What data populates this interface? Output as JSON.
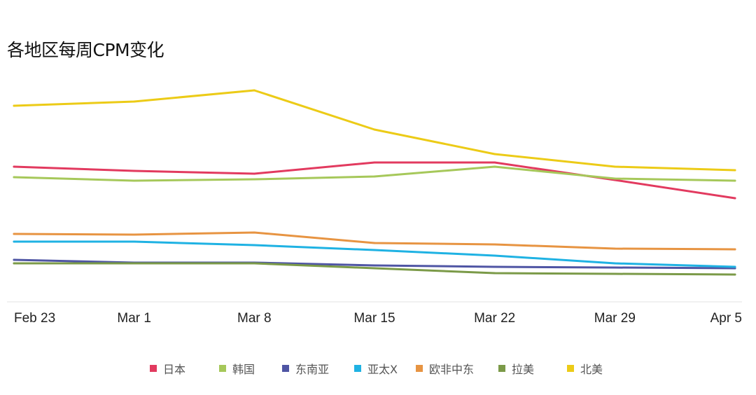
{
  "chart_data": {
    "type": "line",
    "title": "各地区每周CPM变化",
    "x": [
      "Feb 23",
      "Mar 1",
      "Mar 8",
      "Mar 15",
      "Mar 22",
      "Mar 29",
      "Apr 5"
    ],
    "xlabel": "",
    "ylabel": "",
    "grid": false,
    "legend_position": "bottom",
    "series": [
      {
        "name": "日本",
        "color": "#e23a5f",
        "values": [
          193,
          187,
          183,
          199,
          199,
          174,
          148
        ]
      },
      {
        "name": "韩国",
        "color": "#a6c85a",
        "values": [
          178,
          173,
          175,
          179,
          193,
          176,
          173
        ]
      },
      {
        "name": "东南亚",
        "color": "#4f55a4",
        "values": [
          60,
          56,
          56,
          52,
          50,
          49,
          48
        ]
      },
      {
        "name": "亚太X",
        "color": "#1fb2e3",
        "values": [
          86,
          86,
          81,
          74,
          66,
          55,
          50
        ]
      },
      {
        "name": "欧非中东",
        "color": "#e79442",
        "values": [
          97,
          96,
          99,
          84,
          82,
          76,
          75
        ]
      },
      {
        "name": "拉美",
        "color": "#7b9a48",
        "values": [
          55,
          55,
          55,
          48,
          41,
          40,
          39
        ]
      },
      {
        "name": "北美",
        "color": "#eccb17",
        "values": [
          280,
          286,
          302,
          246,
          211,
          193,
          188
        ]
      }
    ],
    "ylim": [
      0,
      377
    ]
  }
}
